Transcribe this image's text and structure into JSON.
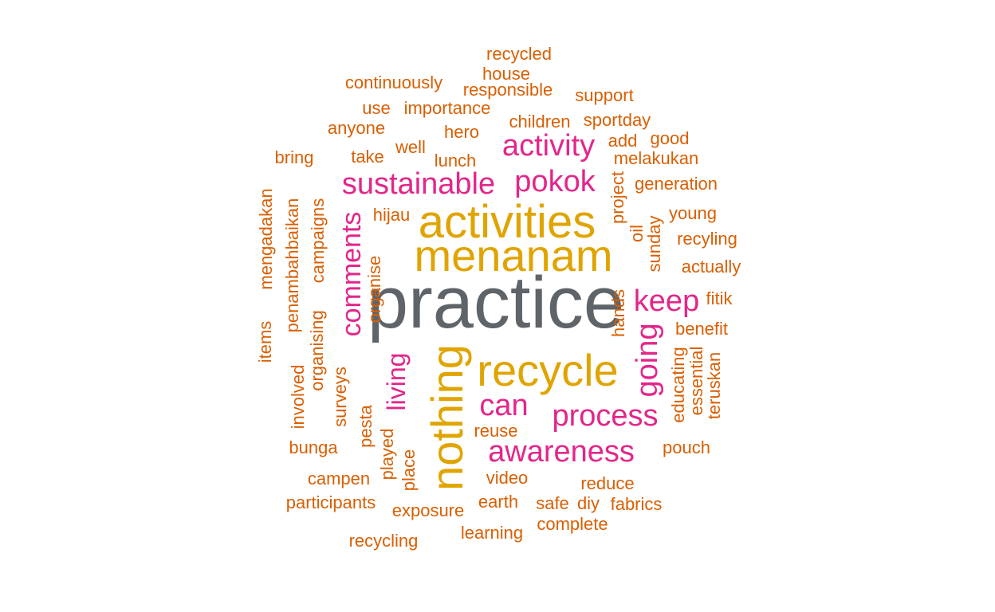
{
  "colors": {
    "top": "#5f6468",
    "large": "#e0a400",
    "medium": "#e3268a",
    "small": "#d95f02"
  },
  "words": [
    {
      "text": "practice",
      "tier": "top"
    },
    {
      "text": "activities",
      "tier": "large"
    },
    {
      "text": "menanam",
      "tier": "large"
    },
    {
      "text": "recycle",
      "tier": "large"
    },
    {
      "text": "nothing",
      "tier": "large"
    },
    {
      "text": "sustainable",
      "tier": "medium"
    },
    {
      "text": "pokok",
      "tier": "medium"
    },
    {
      "text": "activity",
      "tier": "medium"
    },
    {
      "text": "keep",
      "tier": "medium"
    },
    {
      "text": "comments",
      "tier": "medium"
    },
    {
      "text": "going",
      "tier": "medium"
    },
    {
      "text": "process",
      "tier": "medium"
    },
    {
      "text": "can",
      "tier": "medium"
    },
    {
      "text": "awareness",
      "tier": "medium"
    },
    {
      "text": "living",
      "tier": "medium"
    },
    {
      "text": "recycled",
      "tier": "small"
    },
    {
      "text": "house",
      "tier": "small"
    },
    {
      "text": "continuously",
      "tier": "small"
    },
    {
      "text": "responsible",
      "tier": "small"
    },
    {
      "text": "support",
      "tier": "small"
    },
    {
      "text": "use",
      "tier": "small"
    },
    {
      "text": "importance",
      "tier": "small"
    },
    {
      "text": "anyone",
      "tier": "small"
    },
    {
      "text": "hero",
      "tier": "small"
    },
    {
      "text": "children",
      "tier": "small"
    },
    {
      "text": "sportday",
      "tier": "small"
    },
    {
      "text": "good",
      "tier": "small"
    },
    {
      "text": "bring",
      "tier": "small"
    },
    {
      "text": "take",
      "tier": "small"
    },
    {
      "text": "well",
      "tier": "small"
    },
    {
      "text": "lunch",
      "tier": "small"
    },
    {
      "text": "add",
      "tier": "small"
    },
    {
      "text": "melakukan",
      "tier": "small"
    },
    {
      "text": "generation",
      "tier": "small"
    },
    {
      "text": "hijau",
      "tier": "small"
    },
    {
      "text": "project",
      "tier": "small"
    },
    {
      "text": "young",
      "tier": "small"
    },
    {
      "text": "oil",
      "tier": "small"
    },
    {
      "text": "recyling",
      "tier": "small"
    },
    {
      "text": "sunday",
      "tier": "small"
    },
    {
      "text": "actually",
      "tier": "small"
    },
    {
      "text": "mengadakan",
      "tier": "small"
    },
    {
      "text": "penambahbaikan",
      "tier": "small"
    },
    {
      "text": "campaigns",
      "tier": "small"
    },
    {
      "text": "organise",
      "tier": "small"
    },
    {
      "text": "fitik",
      "tier": "small"
    },
    {
      "text": "hands",
      "tier": "small"
    },
    {
      "text": "benefit",
      "tier": "small"
    },
    {
      "text": "items",
      "tier": "small"
    },
    {
      "text": "organising",
      "tier": "small"
    },
    {
      "text": "involved",
      "tier": "small"
    },
    {
      "text": "surveys",
      "tier": "small"
    },
    {
      "text": "educating",
      "tier": "small"
    },
    {
      "text": "essential",
      "tier": "small"
    },
    {
      "text": "teruskan",
      "tier": "small"
    },
    {
      "text": "pesta",
      "tier": "small"
    },
    {
      "text": "reuse",
      "tier": "small"
    },
    {
      "text": "bunga",
      "tier": "small"
    },
    {
      "text": "played",
      "tier": "small"
    },
    {
      "text": "place",
      "tier": "small"
    },
    {
      "text": "pouch",
      "tier": "small"
    },
    {
      "text": "campen",
      "tier": "small"
    },
    {
      "text": "video",
      "tier": "small"
    },
    {
      "text": "reduce",
      "tier": "small"
    },
    {
      "text": "participants",
      "tier": "small"
    },
    {
      "text": "exposure",
      "tier": "small"
    },
    {
      "text": "earth",
      "tier": "small"
    },
    {
      "text": "safe",
      "tier": "small"
    },
    {
      "text": "diy",
      "tier": "small"
    },
    {
      "text": "fabrics",
      "tier": "small"
    },
    {
      "text": "complete",
      "tier": "small"
    },
    {
      "text": "learning",
      "tier": "small"
    },
    {
      "text": "recycling",
      "tier": "small"
    }
  ]
}
